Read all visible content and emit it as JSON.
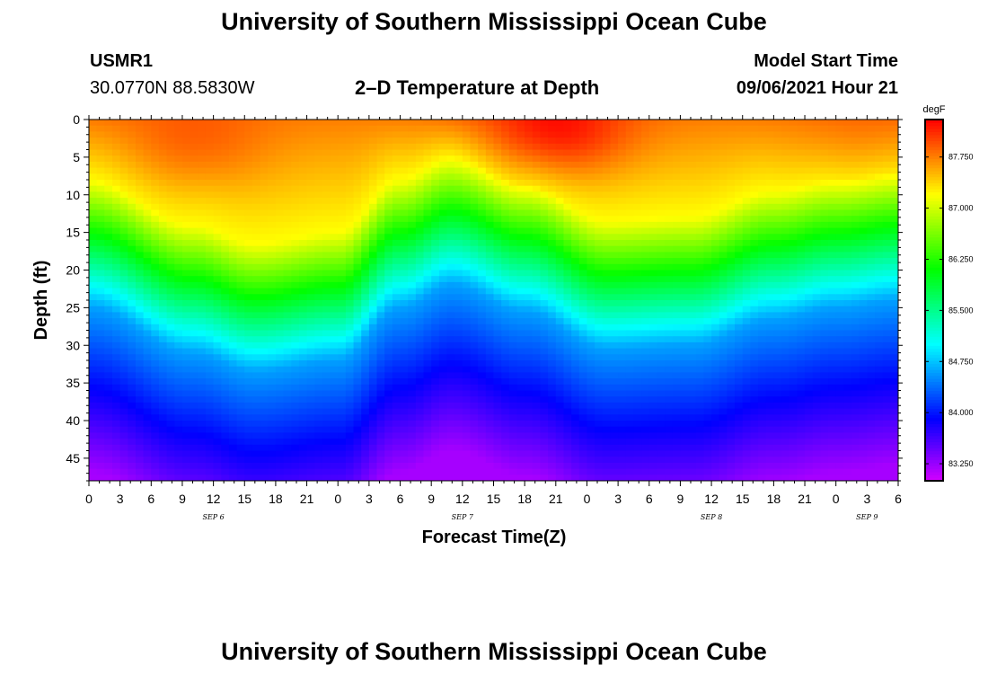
{
  "page": {
    "title_top": "University of Southern Mississippi Ocean Cube",
    "title_bottom": "University of Southern Mississippi Ocean Cube",
    "station_id": "USMR1",
    "coordinates": "30.0770N  88.5830W",
    "plot_title": "2–D Temperature at Depth",
    "model_start_label": "Model Start Time",
    "model_start_value": "09/06/2021 Hour 21"
  },
  "chart_data": {
    "type": "heatmap",
    "title": "2–D Temperature at Depth",
    "xlabel": "Forecast Time(Z)",
    "ylabel": "Depth (ft)",
    "x_units": "hours since 09/06/2021 00Z",
    "x_range": [
      0,
      78
    ],
    "y_range": [
      0,
      48
    ],
    "y_ticks": [
      0,
      5,
      10,
      15,
      20,
      25,
      30,
      35,
      40,
      45
    ],
    "x_tick_hours": [
      0,
      3,
      6,
      9,
      12,
      15,
      18,
      21,
      24,
      27,
      30,
      33,
      36,
      39,
      42,
      45,
      48,
      51,
      54,
      57,
      60,
      63,
      66,
      69,
      72,
      75,
      78
    ],
    "x_tick_labels": [
      "0",
      "3",
      "6",
      "9",
      "12",
      "15",
      "18",
      "21",
      "0",
      "3",
      "6",
      "9",
      "12",
      "15",
      "18",
      "21",
      "0",
      "3",
      "6",
      "9",
      "12",
      "15",
      "18",
      "21",
      "0",
      "3",
      "6"
    ],
    "date_labels": [
      {
        "text": "SEP 6",
        "hour": 12
      },
      {
        "text": "SEP 7",
        "hour": 36
      },
      {
        "text": "SEP 8",
        "hour": 60
      },
      {
        "text": "SEP 9",
        "hour": 75
      }
    ],
    "colorbar": {
      "units": "degF",
      "min": 83.0,
      "max": 88.3,
      "tick_values": [
        87.75,
        87.0,
        86.25,
        85.5,
        84.75,
        84.0,
        83.25
      ],
      "tick_labels": [
        "87.750",
        "87.000",
        "86.250",
        "85.500",
        "84.750",
        "84.000",
        "83.250"
      ]
    },
    "thermocline_depth_ft": [
      {
        "hour": 0,
        "depth": 13.0
      },
      {
        "hour": 10,
        "depth": 19.0
      },
      {
        "hour": 16,
        "depth": 21.5
      },
      {
        "hour": 24,
        "depth": 20.0
      },
      {
        "hour": 30,
        "depth": 13.0
      },
      {
        "hour": 35,
        "depth": 10.0
      },
      {
        "hour": 42,
        "depth": 13.5
      },
      {
        "hour": 50,
        "depth": 18.5
      },
      {
        "hour": 58,
        "depth": 18.0
      },
      {
        "hour": 66,
        "depth": 14.5
      },
      {
        "hour": 72,
        "depth": 13.0
      },
      {
        "hour": 78,
        "depth": 12.0
      }
    ],
    "surface_warm_spots": [
      {
        "hour": 10,
        "depth": 4,
        "temp": 88.0
      },
      {
        "hour": 45,
        "depth": 2,
        "temp": 88.3
      },
      {
        "hour": 75,
        "depth": 4,
        "temp": 87.9
      }
    ]
  }
}
